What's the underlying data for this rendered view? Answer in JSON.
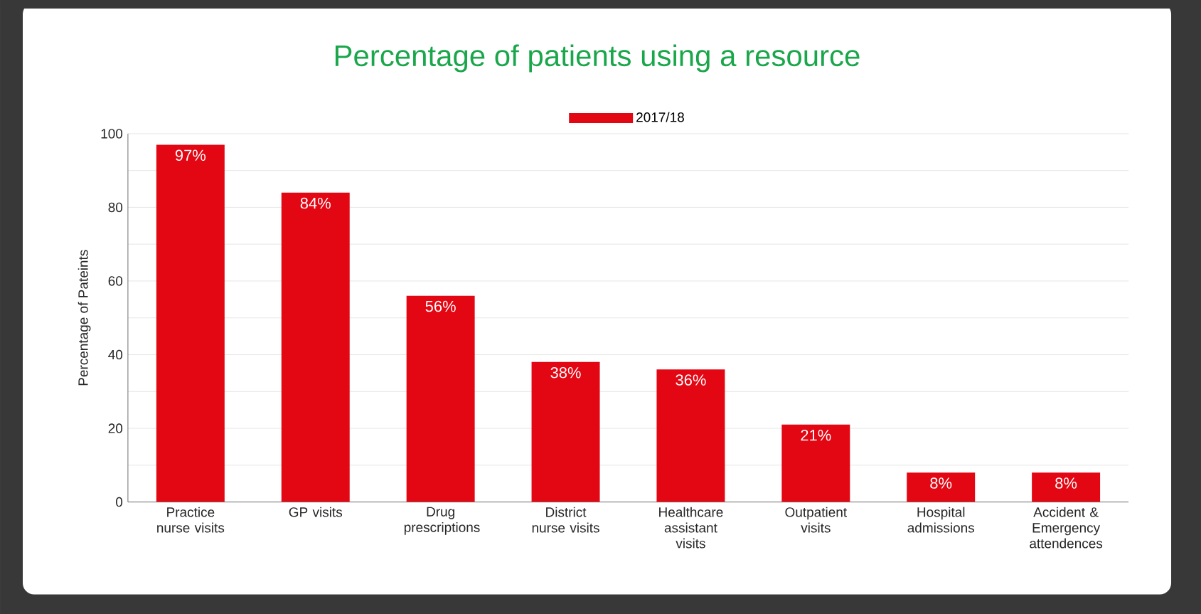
{
  "chart_data": {
    "type": "bar",
    "title": "Percentage of patients using a resource",
    "ylabel": "Percentage of Pateints",
    "categories": [
      "Practice nurse visits",
      "GP visits",
      "Drug prescriptions",
      "District nurse visits",
      "Healthcare assistant visits",
      "Outpatient visits",
      "Hospital admissions",
      "Accident & Emergency attendences"
    ],
    "series": [
      {
        "name": "2017/18",
        "color": "#e30613",
        "values": [
          97,
          84,
          56,
          38,
          36,
          21,
          8,
          8
        ],
        "value_labels": [
          "97%",
          "84%",
          "56%",
          "38%",
          "36%",
          "21%",
          "8%",
          "8%"
        ]
      }
    ],
    "ylim": [
      0,
      100
    ],
    "yticks": [
      0,
      {
        "value": 10,
        "label": null
      },
      20,
      {
        "value": 30,
        "label": null
      },
      40,
      {
        "value": 50,
        "label": null
      },
      60,
      {
        "value": 70,
        "label": null
      },
      80,
      {
        "value": 90,
        "label": null
      },
      100
    ],
    "grid": "y",
    "legend": "top"
  }
}
